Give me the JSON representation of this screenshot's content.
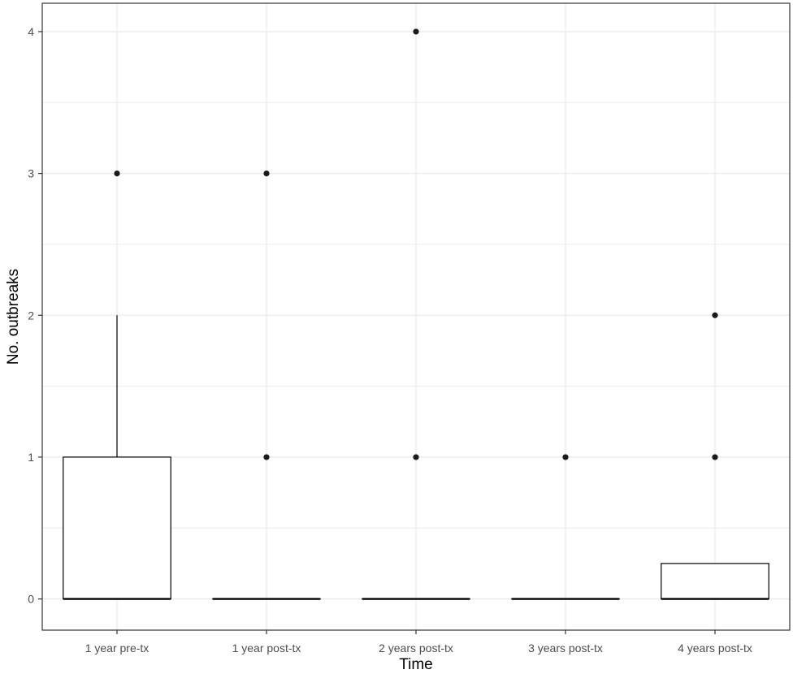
{
  "chart_data": {
    "type": "box",
    "title": "",
    "xlabel": "Time",
    "ylabel": "No. outbreaks",
    "ylim": [
      -0.22,
      4.2
    ],
    "yticks": [
      0,
      1,
      2,
      3,
      4
    ],
    "grid": true,
    "categories": [
      "1 year pre-tx",
      "1 year post-tx",
      "2 years post-tx",
      "3 years post-tx",
      "4 years post-tx"
    ],
    "boxes": [
      {
        "q1": 0,
        "median": 0,
        "q3": 1,
        "whisker_low": 0,
        "whisker_high": 2,
        "outliers": [
          3
        ]
      },
      {
        "q1": 0,
        "median": 0,
        "q3": 0,
        "whisker_low": 0,
        "whisker_high": 0,
        "outliers": [
          1,
          3
        ]
      },
      {
        "q1": 0,
        "median": 0,
        "q3": 0,
        "whisker_low": 0,
        "whisker_high": 0,
        "outliers": [
          1,
          4
        ]
      },
      {
        "q1": 0,
        "median": 0,
        "q3": 0,
        "whisker_low": 0,
        "whisker_high": 0,
        "outliers": [
          1
        ]
      },
      {
        "q1": 0,
        "median": 0,
        "q3": 0.25,
        "whisker_low": 0,
        "whisker_high": 0.25,
        "outliers": [
          1,
          2
        ]
      }
    ],
    "colors": {
      "box_fill": "#ffffff",
      "line": "#000000",
      "point": "#1a1a1a",
      "grid": "#ebebeb",
      "tick_text": "#4d4d4d"
    }
  }
}
